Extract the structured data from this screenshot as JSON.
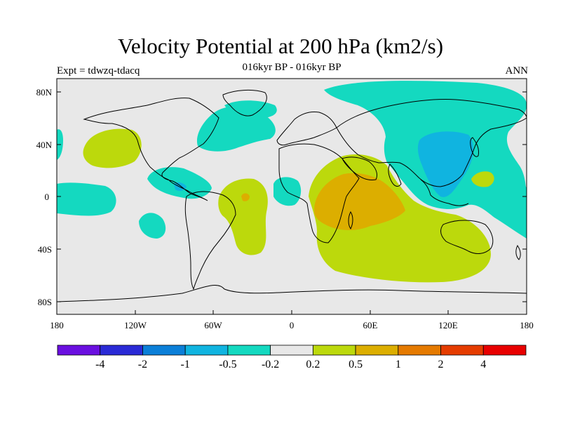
{
  "header": {
    "title": "Velocity Potential at 200 hPa (km2/s)",
    "subtitle": "016kyr BP - 016kyr BP",
    "left_label": "Expt = tdwzq-tdacq",
    "right_label": "ANN"
  },
  "axes": {
    "lat_ticks": [
      "80N",
      "40N",
      "0",
      "40S",
      "80S"
    ],
    "lon_ticks": [
      "180",
      "120W",
      "60W",
      "0",
      "60E",
      "120E",
      "180"
    ]
  },
  "colorbar": {
    "colors": [
      "#6a0fe0",
      "#2a2ad6",
      "#0b7fd8",
      "#10b4e0",
      "#14d9c0",
      "#e8e8e8",
      "#bcd90c",
      "#dcae00",
      "#e57a00",
      "#e53c00",
      "#e80000"
    ],
    "labels": [
      "-4",
      "-2",
      "-1",
      "-0.5",
      "-0.2",
      "0.2",
      "0.5",
      "1",
      "2",
      "4"
    ]
  },
  "colors": {
    "background": "#e8e8e8",
    "coastline": "#000000"
  }
}
